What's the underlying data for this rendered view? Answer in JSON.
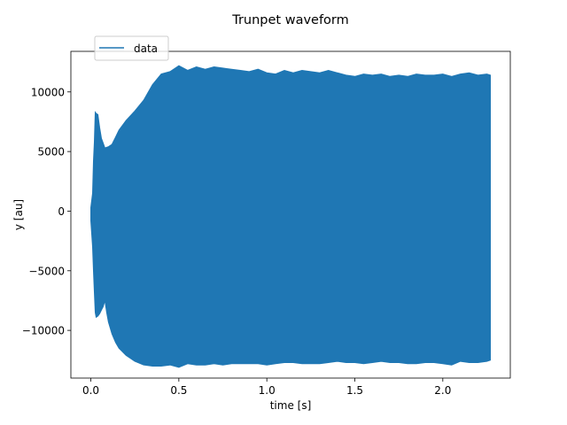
{
  "chart_data": {
    "type": "line",
    "title": "Trunpet waveform",
    "xlabel": "time [s]",
    "ylabel": "y [au]",
    "xlim": [
      -0.1135,
      2.3835
    ],
    "ylim": [
      -14000,
      13400
    ],
    "x_ticks": [
      0.0,
      0.5,
      1.0,
      1.5,
      2.0
    ],
    "x_tick_labels": [
      "0.0",
      "0.5",
      "1.0",
      "1.5",
      "2.0"
    ],
    "y_ticks": [
      -10000,
      -5000,
      0,
      5000,
      10000
    ],
    "y_tick_labels": [
      "−10000",
      "−5000",
      "0",
      "5000",
      "10000"
    ],
    "grid": false,
    "legend_position": "upper left",
    "series": [
      {
        "name": "data",
        "color": "#1f77b4",
        "envelope": {
          "t": [
            0.0,
            0.01,
            0.015,
            0.02,
            0.025,
            0.03,
            0.04,
            0.05,
            0.06,
            0.07,
            0.08,
            0.09,
            0.1,
            0.12,
            0.14,
            0.16,
            0.2,
            0.25,
            0.3,
            0.35,
            0.4,
            0.45,
            0.5,
            0.55,
            0.6,
            0.65,
            0.7,
            0.75,
            0.8,
            0.85,
            0.9,
            0.95,
            1.0,
            1.05,
            1.1,
            1.15,
            1.2,
            1.25,
            1.3,
            1.35,
            1.4,
            1.45,
            1.5,
            1.55,
            1.6,
            1.65,
            1.7,
            1.75,
            1.8,
            1.85,
            1.9,
            1.95,
            2.0,
            2.05,
            2.1,
            2.15,
            2.2,
            2.25,
            2.27
          ],
          "max": [
            300,
            1500,
            4200,
            5800,
            8300,
            8200,
            8100,
            7000,
            6100,
            5700,
            5300,
            5350,
            5400,
            5600,
            6200,
            6800,
            7600,
            8400,
            9300,
            10600,
            11500,
            11700,
            12200,
            11800,
            12100,
            11900,
            12100,
            12000,
            11900,
            11800,
            11700,
            11900,
            11600,
            11500,
            11800,
            11600,
            11800,
            11700,
            11600,
            11800,
            11600,
            11400,
            11300,
            11500,
            11400,
            11500,
            11300,
            11400,
            11300,
            11500,
            11400,
            11400,
            11500,
            11300,
            11500,
            11600,
            11400,
            11500,
            11400
          ],
          "min": [
            -800,
            -3000,
            -5000,
            -6800,
            -8500,
            -8900,
            -8800,
            -8600,
            -8300,
            -8000,
            -7500,
            -8500,
            -9300,
            -10300,
            -11000,
            -11500,
            -12100,
            -12600,
            -12900,
            -13000,
            -13000,
            -12900,
            -13100,
            -12800,
            -12900,
            -12900,
            -12800,
            -12900,
            -12800,
            -12800,
            -12800,
            -12800,
            -12900,
            -12800,
            -12700,
            -12700,
            -12800,
            -12800,
            -12800,
            -12700,
            -12600,
            -12700,
            -12700,
            -12800,
            -12700,
            -12600,
            -12700,
            -12700,
            -12800,
            -12800,
            -12700,
            -12700,
            -12800,
            -12900,
            -12600,
            -12700,
            -12700,
            -12600,
            -12500
          ]
        }
      }
    ]
  }
}
